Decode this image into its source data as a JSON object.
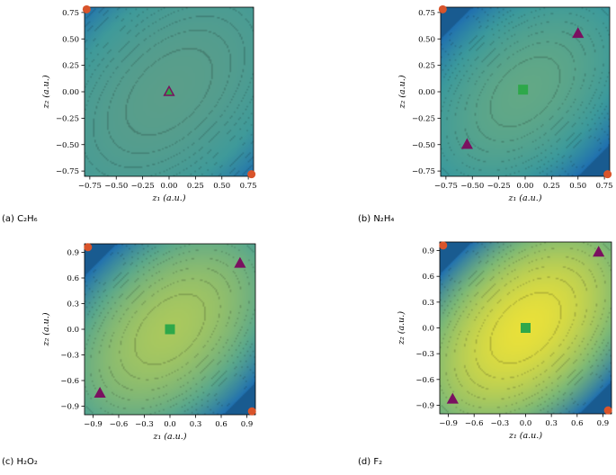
{
  "chart_data": [
    {
      "type": "heatmap",
      "caption": "(a) C₂H₆",
      "xlabel": "z₁ (a.u.)",
      "ylabel": "z₂ (a.u.)",
      "xlim": [
        -0.8,
        0.8
      ],
      "ylim": [
        -0.8,
        0.8
      ],
      "xticks": [
        "−0.75",
        "−0.50",
        "−0.25",
        "0.00",
        "0.25",
        "0.50",
        "0.75"
      ],
      "yticks": [
        "−0.75",
        "−0.50",
        "−0.25",
        "0.00",
        "0.25",
        "0.50",
        "0.75"
      ],
      "tick_values": [
        -0.75,
        -0.5,
        -0.25,
        0,
        0.25,
        0.5,
        0.75
      ],
      "surface": "staggered",
      "colors": {
        "low": "#1f6fb0",
        "mid": "#3f9a9a",
        "high": "#5a9e8a"
      },
      "markers": [
        {
          "shape": "triangle",
          "color": "#7a1060",
          "x": 0.0,
          "y": 0.0
        },
        {
          "shape": "triangle-small",
          "color": "#2ea84a",
          "x": 0.0,
          "y": 0.0
        },
        {
          "shape": "circle",
          "color": "#d9542b",
          "x": -0.78,
          "y": 0.78
        },
        {
          "shape": "circle",
          "color": "#d9542b",
          "x": 0.78,
          "y": -0.78
        }
      ]
    },
    {
      "type": "heatmap",
      "caption": "(b) N₂H₄",
      "xlabel": "z₁ (a.u.)",
      "ylabel": "z₂ (a.u.)",
      "xlim": [
        -0.8,
        0.8
      ],
      "ylim": [
        -0.8,
        0.8
      ],
      "xticks": [
        "−0.75",
        "−0.50",
        "−0.25",
        "0.00",
        "0.25",
        "0.50",
        "0.75"
      ],
      "yticks": [
        "−0.75",
        "−0.50",
        "−0.25",
        "0.00",
        "0.25",
        "0.50",
        "0.75"
      ],
      "tick_values": [
        -0.75,
        -0.5,
        -0.25,
        0,
        0.25,
        0.5,
        0.75
      ],
      "surface": "valley",
      "colors": {
        "low": "#1f6fb0",
        "mid": "#3c9a9c",
        "high": "#62a886"
      },
      "markers": [
        {
          "shape": "square",
          "color": "#2ea84a",
          "x": -0.02,
          "y": 0.02
        },
        {
          "shape": "triangle",
          "color": "#7a1060",
          "x": 0.5,
          "y": 0.55
        },
        {
          "shape": "triangle",
          "color": "#7a1060",
          "x": -0.55,
          "y": -0.5
        },
        {
          "shape": "circle",
          "color": "#d9542b",
          "x": -0.78,
          "y": 0.78
        },
        {
          "shape": "circle",
          "color": "#d9542b",
          "x": 0.78,
          "y": -0.78
        }
      ]
    },
    {
      "type": "heatmap",
      "caption": "(c) H₂O₂",
      "xlabel": "z₁ (a.u.)",
      "ylabel": "z₂ (a.u.)",
      "xlim": [
        -1.0,
        1.0
      ],
      "ylim": [
        -1.0,
        1.0
      ],
      "xticks": [
        "−0.9",
        "−0.6",
        "−0.3",
        "0.0",
        "0.3",
        "0.6",
        "0.9"
      ],
      "yticks": [
        "−0.9",
        "−0.6",
        "−0.3",
        "0.0",
        "0.3",
        "0.6",
        "0.9"
      ],
      "tick_values": [
        -0.9,
        -0.6,
        -0.3,
        0,
        0.3,
        0.6,
        0.9
      ],
      "surface": "valley",
      "colors": {
        "low": "#1f6fb0",
        "mid": "#5aa88c",
        "high": "#a9c85e"
      },
      "markers": [
        {
          "shape": "square",
          "color": "#2ea84a",
          "x": 0.0,
          "y": 0.0
        },
        {
          "shape": "triangle",
          "color": "#7a1060",
          "x": 0.82,
          "y": 0.77
        },
        {
          "shape": "triangle",
          "color": "#7a1060",
          "x": -0.82,
          "y": -0.75
        },
        {
          "shape": "circle",
          "color": "#d9542b",
          "x": -0.96,
          "y": 0.96
        },
        {
          "shape": "circle",
          "color": "#d9542b",
          "x": 0.96,
          "y": -0.96
        }
      ]
    },
    {
      "type": "heatmap",
      "caption": "(d) F₂",
      "xlabel": "z₁ (a.u.)",
      "ylabel": "z₂ (a.u.)",
      "xlim": [
        -1.0,
        1.0
      ],
      "ylim": [
        -1.0,
        1.0
      ],
      "xticks": [
        "−0.9",
        "−0.6",
        "−0.3",
        "0.0",
        "0.3",
        "0.6",
        "0.9"
      ],
      "yticks": [
        "−0.9",
        "−0.6",
        "−0.3",
        "0.0",
        "0.3",
        "0.6",
        "0.9"
      ],
      "tick_values": [
        -0.9,
        -0.6,
        -0.3,
        0,
        0.3,
        0.6,
        0.9
      ],
      "surface": "valley",
      "colors": {
        "low": "#1f6fb0",
        "mid": "#7bb877",
        "high": "#e8e03a"
      },
      "markers": [
        {
          "shape": "square",
          "color": "#2ea84a",
          "x": 0.0,
          "y": 0.0
        },
        {
          "shape": "triangle",
          "color": "#7a1060",
          "x": 0.85,
          "y": 0.88
        },
        {
          "shape": "triangle",
          "color": "#7a1060",
          "x": -0.85,
          "y": -0.83
        },
        {
          "shape": "circle",
          "color": "#d9542b",
          "x": -0.96,
          "y": 0.96
        },
        {
          "shape": "circle",
          "color": "#d9542b",
          "x": 0.96,
          "y": -0.96
        }
      ]
    }
  ]
}
